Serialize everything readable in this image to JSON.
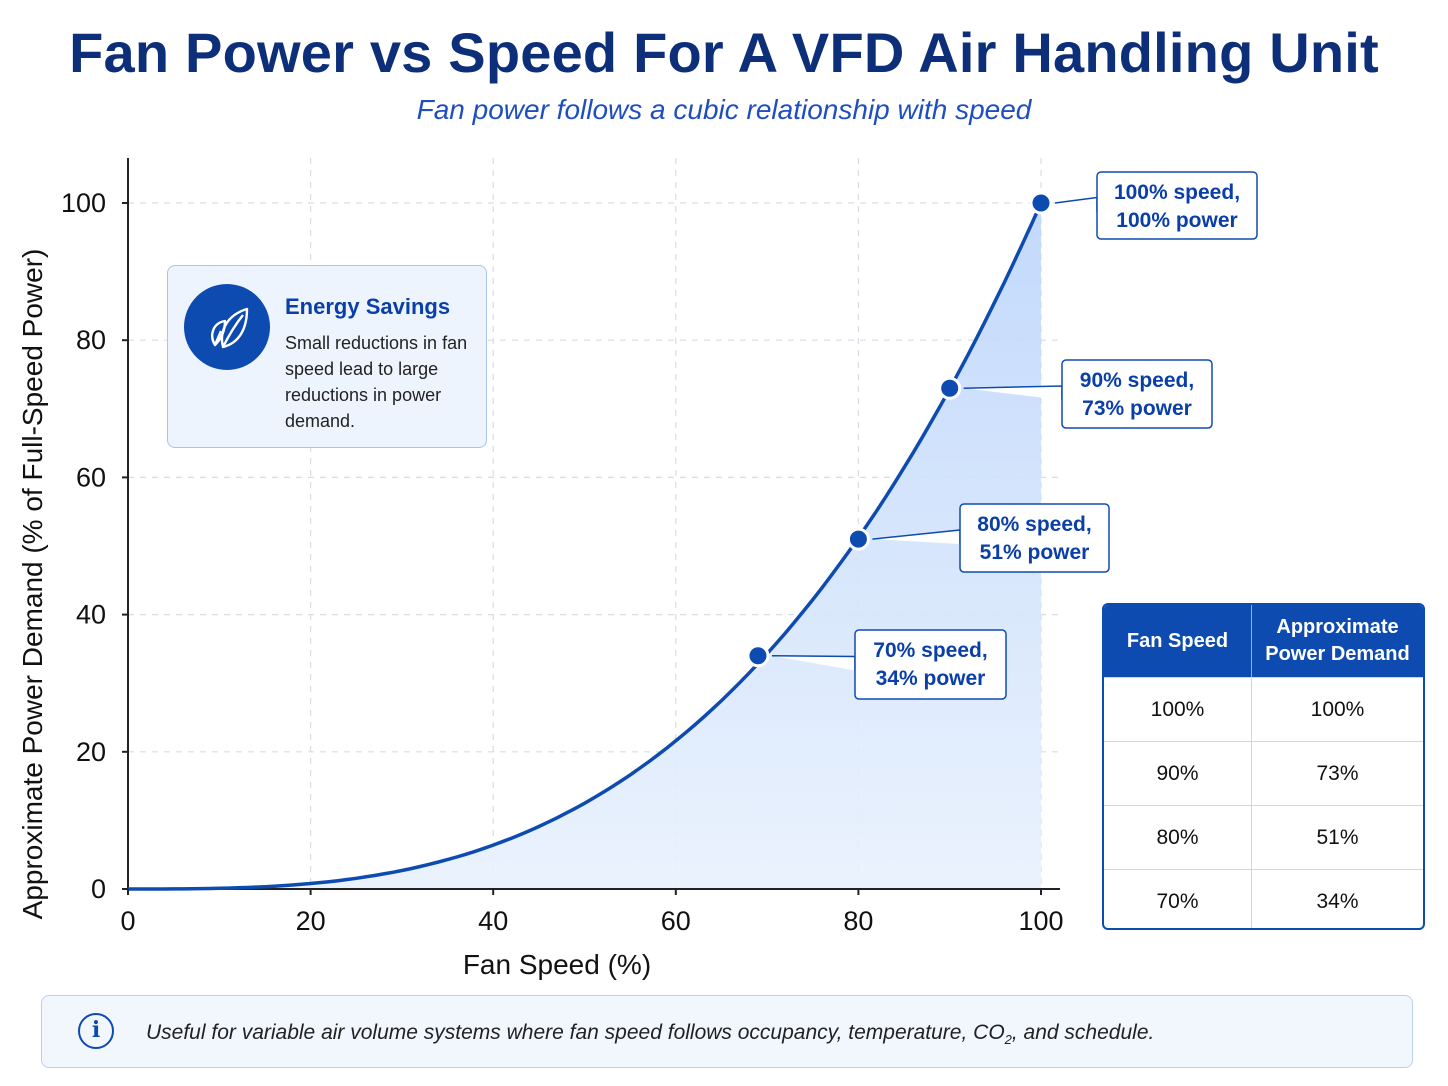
{
  "title": "Fan Power vs Speed For A VFD Air Handling Unit",
  "subtitle": "Fan power follows a cubic relationship with speed",
  "chart_data": {
    "type": "line",
    "title": "Fan Power vs Speed For A VFD Air Handling Unit",
    "subtitle": "Fan power follows a cubic relationship with speed",
    "xlabel": "Fan Speed (%)",
    "ylabel": "Approximate Power Demand (% of Full-Speed Power)",
    "xlim": [
      0,
      100
    ],
    "ylim": [
      0,
      100
    ],
    "xticks": [
      0,
      20,
      40,
      60,
      80,
      100
    ],
    "yticks": [
      0,
      20,
      40,
      60,
      80,
      100
    ],
    "grid": true,
    "area_fill": true,
    "series": [
      {
        "relationship": "cubic",
        "x": [
          0,
          10,
          20,
          30,
          40,
          50,
          60,
          70,
          80,
          90,
          100
        ],
        "y": [
          0,
          0.1,
          0.8,
          2.7,
          6.4,
          12.5,
          21.6,
          34.3,
          51.2,
          72.9,
          100
        ]
      }
    ],
    "highlight_points": [
      {
        "x": 100,
        "y": 100,
        "label_line1": "100% speed,",
        "label_line2": "100% power"
      },
      {
        "x": 90,
        "y": 73,
        "label_line1": "90% speed,",
        "label_line2": "73% power"
      },
      {
        "x": 80,
        "y": 51,
        "label_line1": "80% speed,",
        "label_line2": "51% power"
      },
      {
        "x": 70,
        "y": 34,
        "label_line1": "70% speed,",
        "label_line2": "34% power"
      }
    ],
    "colors": {
      "line": "#0e4bb0",
      "fill": "#cfe0fa",
      "point": "#0e4bb0"
    }
  },
  "energy_savings": {
    "title": "Energy Savings",
    "body": "Small reductions in fan speed lead to large reductions in power demand.",
    "icon": "leaf-icon"
  },
  "table": {
    "headers": [
      "Fan Speed",
      "Approximate Power Demand"
    ],
    "rows": [
      [
        "100%",
        "100%"
      ],
      [
        "90%",
        "73%"
      ],
      [
        "80%",
        "51%"
      ],
      [
        "70%",
        "34%"
      ]
    ]
  },
  "note": {
    "icon": "info-icon",
    "text_before": "Useful for variable air volume systems where fan speed follows occupancy, temperature, CO",
    "subscript": "2",
    "text_after": ", and schedule."
  }
}
